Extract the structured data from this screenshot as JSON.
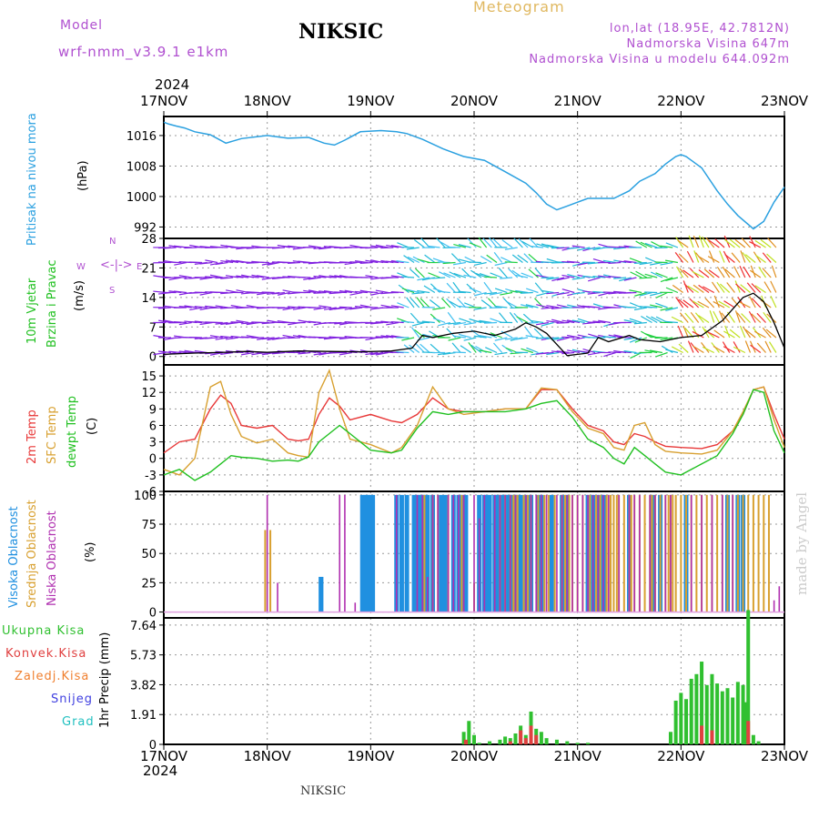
{
  "header": {
    "model_label": "Model",
    "model_name": "wrf-nmm_v3.9.1  e1km",
    "station": "NIKSIC",
    "meteogram_label": "Meteogram",
    "coords": "lon,lat (18.95E, 42.7812N)",
    "elevation": "Nadmorska Visina 647m",
    "model_elevation": "Nadmorska Visina u modelu 644.092m",
    "footer_station": "NIKSIC",
    "credit": "made by Angel"
  },
  "time_axis": {
    "year": "2024",
    "days": [
      "17NOV",
      "18NOV",
      "19NOV",
      "20NOV",
      "21NOV",
      "22NOV",
      "23NOV"
    ]
  },
  "colors": {
    "pressure": "#2aa0e0",
    "wind_speed": "#000000",
    "gust": "#e83030",
    "temp_2m": "#e83838",
    "temp_sfc": "#d8a030",
    "dewpoint": "#20c020",
    "cloud_high": "#2090e0",
    "cloud_mid": "#d8a030",
    "cloud_low": "#b030b0",
    "precip_total": "#30c030",
    "precip_conv": "#e04040",
    "precip_frozen": "#f08030",
    "snow": "#4040e0",
    "hail": "#20c0c0",
    "barb_purple": "#8020e0"
  },
  "chart_data": [
    {
      "type": "line",
      "panel": "pressure",
      "ylabel": [
        "Pritisak na nivou mora",
        "(hPa)"
      ],
      "yticks": [
        992,
        1000,
        1008,
        1016
      ],
      "ylim": [
        989,
        1021
      ],
      "x_days": [
        0,
        0.05,
        0.12,
        0.2,
        0.3,
        0.45,
        0.6,
        0.75,
        1.0,
        1.2,
        1.4,
        1.55,
        1.65,
        1.75,
        1.9,
        2.1,
        2.25,
        2.35,
        2.5,
        2.7,
        2.9,
        3.1,
        3.3,
        3.5,
        3.6,
        3.7,
        3.8,
        3.9,
        4.0,
        4.1,
        4.2,
        4.35,
        4.5,
        4.6,
        4.75,
        4.85,
        4.95,
        5.0,
        5.05,
        5.1,
        5.2,
        5.35,
        5.45,
        5.55,
        5.7,
        5.8,
        5.9,
        6.0
      ],
      "series": [
        {
          "name": "",
          "values": [
            1019.5,
            1019,
            1018.5,
            1018,
            1017,
            1016.2,
            1014,
            1015.2,
            1016,
            1015.3,
            1015.5,
            1014,
            1013.5,
            1014.8,
            1017,
            1017.3,
            1017,
            1016.5,
            1015,
            1012.5,
            1010.5,
            1009.5,
            1006.5,
            1003.5,
            1001,
            998,
            996.5,
            997.5,
            998.5,
            999.5,
            999.5,
            999.5,
            1001.5,
            1004,
            1006,
            1008.5,
            1010.5,
            1011,
            1010.5,
            1009.5,
            1007.5,
            1001.5,
            998,
            995,
            991.5,
            993.5,
            998.5,
            1002.5
          ]
        }
      ]
    },
    {
      "type": "line",
      "panel": "wind",
      "ylabel": [
        "10m Vjetar",
        "Brzina i Pravac",
        "(m/s)"
      ],
      "compass": [
        "N",
        "E",
        "S",
        "W"
      ],
      "yticks": [
        0,
        7,
        14,
        21,
        28
      ],
      "ylim": [
        -2,
        28
      ],
      "x_days": [
        0,
        0.3,
        0.6,
        0.8,
        1.0,
        1.3,
        1.6,
        1.9,
        2.2,
        2.4,
        2.5,
        2.6,
        2.8,
        3.0,
        3.2,
        3.4,
        3.5,
        3.6,
        3.7,
        3.9,
        4.0,
        4.1,
        4.2,
        4.3,
        4.5,
        4.6,
        4.8,
        5.0,
        5.2,
        5.4,
        5.6,
        5.7,
        5.8,
        5.9,
        6.0
      ],
      "series": [
        {
          "name": "",
          "values": [
            0.5,
            0.8,
            1,
            1.2,
            1,
            1.3,
            1.2,
            1.1,
            1.3,
            2,
            5,
            4.5,
            5.5,
            6,
            5,
            6.5,
            8,
            7,
            5.5,
            0.2,
            0.5,
            0.8,
            4.5,
            3.5,
            5,
            4,
            3.5,
            4.5,
            5,
            8.5,
            14,
            15,
            13,
            8,
            2
          ]
        }
      ]
    },
    {
      "type": "line",
      "panel": "temperature",
      "ylabel": [
        "2m Temp",
        "SFC Temp",
        "dewpt Temp",
        "(C)"
      ],
      "yticks": [
        -6,
        -3,
        0,
        3,
        6,
        9,
        12,
        15
      ],
      "ylim": [
        -6,
        17
      ],
      "x_days": [
        0,
        0.15,
        0.3,
        0.45,
        0.55,
        0.65,
        0.75,
        0.9,
        1.05,
        1.2,
        1.3,
        1.4,
        1.5,
        1.6,
        1.7,
        1.8,
        2.0,
        2.2,
        2.3,
        2.45,
        2.6,
        2.75,
        2.9,
        3.1,
        3.3,
        3.5,
        3.65,
        3.8,
        3.95,
        4.1,
        4.25,
        4.35,
        4.45,
        4.55,
        4.65,
        4.75,
        4.85,
        5.0,
        5.2,
        5.35,
        5.5,
        5.6,
        5.7,
        5.8,
        5.9,
        6.0
      ],
      "series": [
        {
          "name": "2m Temp",
          "values": [
            1,
            3,
            3.5,
            9,
            11.5,
            10,
            6,
            5.5,
            6,
            3.5,
            3.2,
            3.5,
            8,
            11,
            9.5,
            7,
            8,
            6.8,
            6.5,
            8,
            11,
            9,
            8.5,
            8.5,
            9,
            9,
            12.5,
            12.5,
            9,
            6,
            5,
            3,
            2.5,
            4.5,
            4,
            3,
            2.2,
            2,
            1.8,
            2.5,
            5,
            8,
            12.5,
            13,
            8,
            3.5
          ]
        },
        {
          "name": "SFC Temp",
          "values": [
            -2,
            -3,
            0,
            13,
            14,
            8,
            4,
            2.8,
            3.5,
            1,
            0.5,
            0.2,
            12,
            16,
            9,
            3.5,
            2.5,
            1,
            2,
            6,
            13,
            9,
            8,
            8.5,
            9,
            9,
            12.8,
            12.5,
            8.5,
            5.5,
            4.5,
            2,
            1.5,
            6,
            6.5,
            2.5,
            1.3,
            1,
            0.8,
            1.5,
            5,
            8.5,
            12.5,
            13,
            7,
            2
          ]
        },
        {
          "name": "dewpt Temp",
          "values": [
            -3,
            -2,
            -4,
            -2.5,
            -1,
            0.5,
            0.2,
            0,
            -0.5,
            -0.3,
            -0.5,
            0.3,
            3,
            4.5,
            6,
            4.5,
            1.5,
            1,
            1.5,
            5.5,
            8.5,
            8,
            8.5,
            8.5,
            8.5,
            9,
            10,
            10.5,
            7.5,
            3.5,
            2,
            0,
            -1,
            2,
            0.5,
            -1,
            -2.5,
            -3,
            -1,
            0.5,
            4.5,
            8,
            12.5,
            12,
            5,
            1
          ]
        }
      ]
    },
    {
      "type": "bar",
      "panel": "clouds",
      "ylabel": [
        "Visoka Oblacnost",
        "Srednja Oblacnost",
        "Niska Oblacnost",
        "(%)"
      ],
      "yticks": [
        0,
        25,
        50,
        75,
        100
      ],
      "ylim": [
        -5,
        103
      ],
      "series": [
        {
          "name": "Visoka Oblacnost",
          "x_days": [
            1.52,
            1.52,
            1.92,
            1.95,
            1.97,
            2.0,
            2.02,
            2.25,
            2.3,
            2.35,
            2.42,
            2.45,
            2.48,
            2.5,
            2.52,
            2.55,
            2.6,
            2.68,
            2.72,
            2.8,
            2.85,
            2.88,
            2.92,
            3.05,
            3.1,
            3.12,
            3.15,
            3.2,
            3.22,
            3.25,
            3.28,
            3.3,
            3.3,
            3.33,
            3.35,
            3.38,
            3.4,
            3.42,
            3.45,
            3.5,
            3.55,
            3.62,
            3.65,
            3.75,
            3.85,
            3.9,
            4.1,
            4.15,
            4.2,
            4.25,
            4.5,
            4.72,
            4.8,
            5.05,
            5.45,
            5.55,
            5.6,
            5.98
          ],
          "values": [
            30,
            30,
            100,
            100,
            100,
            100,
            100,
            100,
            100,
            100,
            100,
            100,
            100,
            100,
            100,
            100,
            100,
            100,
            100,
            100,
            100,
            100,
            100,
            100,
            100,
            100,
            100,
            100,
            100,
            100,
            100,
            100,
            100,
            100,
            100,
            100,
            100,
            100,
            100,
            100,
            100,
            100,
            100,
            100,
            100,
            100,
            100,
            100,
            100,
            100,
            100,
            100,
            100,
            100,
            100,
            100,
            100,
            0
          ]
        },
        {
          "name": "Srednja Oblacnost",
          "x_days": [
            0.98,
            1.03,
            2.52,
            2.6,
            2.65,
            2.75,
            2.88,
            3.0,
            3.25,
            3.3,
            3.35,
            3.38,
            3.4,
            3.42,
            3.48,
            3.52,
            3.55,
            3.62,
            3.68,
            3.72,
            3.78,
            3.85,
            3.88,
            3.92,
            3.95,
            4.0,
            4.05,
            4.12,
            4.18,
            4.22,
            4.28,
            4.3,
            4.32,
            4.35,
            4.38,
            4.4,
            4.45,
            4.5,
            4.52,
            4.55,
            4.6,
            4.65,
            4.7,
            4.72,
            4.75,
            4.8,
            4.85,
            4.88,
            4.9,
            4.92,
            4.95,
            5.0,
            5.05,
            5.1,
            5.15,
            5.2,
            5.25,
            5.3,
            5.35,
            5.4,
            5.45,
            5.5,
            5.55,
            5.6,
            5.65,
            5.7,
            5.75,
            5.8,
            5.85
          ],
          "values": [
            70,
            70,
            100,
            100,
            100,
            100,
            100,
            25,
            100,
            100,
            100,
            100,
            100,
            100,
            100,
            100,
            100,
            100,
            100,
            100,
            100,
            100,
            100,
            100,
            100,
            100,
            100,
            100,
            100,
            100,
            100,
            100,
            100,
            100,
            100,
            100,
            100,
            100,
            100,
            100,
            100,
            100,
            100,
            100,
            100,
            100,
            100,
            100,
            100,
            100,
            100,
            100,
            100,
            100,
            100,
            100,
            100,
            100,
            100,
            100,
            100,
            100,
            100,
            100,
            100,
            100,
            100,
            100,
            100
          ]
        },
        {
          "name": "Niska Oblacnost",
          "x_days": [
            0,
            0.5,
            1.0,
            1.1,
            1.2,
            1.3,
            1.45,
            1.55,
            1.7,
            1.75,
            1.85,
            2.25,
            2.45,
            2.5,
            2.55,
            2.6,
            2.65,
            2.75,
            2.8,
            2.85,
            2.9,
            3.0,
            3.05,
            3.1,
            3.2,
            3.25,
            3.3,
            3.35,
            3.4,
            3.5,
            3.55,
            3.6,
            3.65,
            3.7,
            3.8,
            3.85,
            3.9,
            3.95,
            4.0,
            4.05,
            4.1,
            4.15,
            4.2,
            4.25,
            4.3,
            4.4,
            4.5,
            4.55,
            4.6,
            4.7,
            4.75,
            4.85,
            4.9,
            5.1,
            5.2,
            5.3,
            5.4,
            5.5,
            5.9,
            5.95
          ],
          "values": [
            0,
            0,
            100,
            25,
            0,
            0,
            0,
            0,
            100,
            100,
            8,
            100,
            100,
            100,
            30,
            100,
            100,
            100,
            100,
            100,
            100,
            100,
            80,
            100,
            100,
            100,
            100,
            100,
            100,
            100,
            100,
            100,
            100,
            100,
            100,
            100,
            100,
            100,
            100,
            100,
            100,
            100,
            100,
            100,
            100,
            100,
            100,
            100,
            100,
            100,
            100,
            100,
            100,
            100,
            100,
            100,
            100,
            100,
            10,
            22
          ]
        }
      ]
    },
    {
      "type": "bar",
      "panel": "precipitation",
      "ylabel": [
        "Ukupna Kisa",
        "Konvek.Kisa",
        "Zaledj.Kisa",
        "Snijeg",
        "Grad",
        "1hr Precip (mm)"
      ],
      "yticks": [
        0,
        1.91,
        3.82,
        5.73,
        7.64
      ],
      "ylim": [
        0,
        8.1
      ],
      "series": [
        {
          "name": "Ukupna Kisa",
          "x_days": [
            2.9,
            2.95,
            3.0,
            3.05,
            3.15,
            3.25,
            3.3,
            3.35,
            3.4,
            3.45,
            3.5,
            3.55,
            3.6,
            3.65,
            3.7,
            3.8,
            3.9,
            4.0,
            4.1,
            4.9,
            4.95,
            5.0,
            5.05,
            5.1,
            5.15,
            5.2,
            5.25,
            5.3,
            5.35,
            5.4,
            5.45,
            5.5,
            5.55,
            5.6,
            5.62,
            5.65,
            5.7,
            5.75
          ],
          "values": [
            0.8,
            1.5,
            0.6,
            0.1,
            0.2,
            0.3,
            0.5,
            0.4,
            0.7,
            1.2,
            0.6,
            2.1,
            1.0,
            0.8,
            0.4,
            0.3,
            0.2,
            0.1,
            0.1,
            0.8,
            2.8,
            3.3,
            2.9,
            4.2,
            4.5,
            5.3,
            3.8,
            4.5,
            3.9,
            3.4,
            3.6,
            3.0,
            4.0,
            3.8,
            2.7,
            8.6,
            0.6,
            0.2
          ]
        },
        {
          "name": "Konvek.Kisa",
          "x_days": [
            2.92,
            3.35,
            3.45,
            3.5,
            3.55,
            3.6,
            5.2,
            5.3,
            5.65
          ],
          "values": [
            0.3,
            0.2,
            0.9,
            0.4,
            1.2,
            0.6,
            1.2,
            0.9,
            1.5
          ]
        },
        {
          "name": "Zaledj.Kisa",
          "values": []
        },
        {
          "name": "Snijeg",
          "values": []
        },
        {
          "name": "Grad",
          "values": []
        }
      ]
    }
  ]
}
